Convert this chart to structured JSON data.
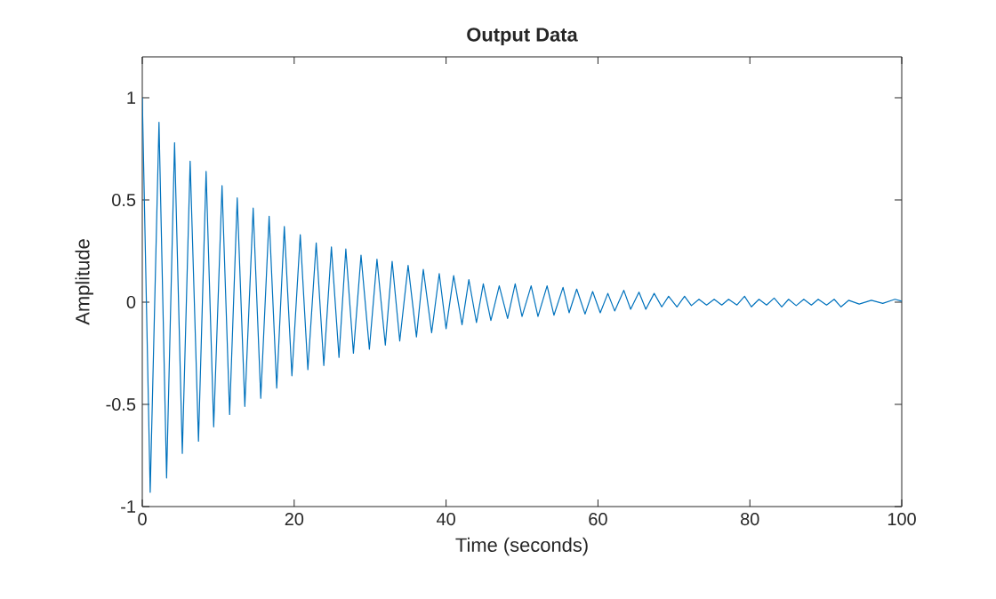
{
  "chart_data": {
    "type": "line",
    "title": "Output Data",
    "xlabel": "Time (seconds)",
    "ylabel": "Amplitude",
    "color": "#0072bd",
    "x": [
      0,
      1.04,
      2.2,
      3.2,
      4.25,
      5.27,
      6.3,
      7.4,
      8.4,
      9.4,
      10.5,
      11.5,
      12.5,
      13.5,
      14.6,
      15.6,
      16.7,
      17.7,
      18.7,
      19.7,
      20.8,
      21.8,
      22.9,
      23.9,
      24.9,
      25.9,
      26.8,
      27.8,
      28.8,
      29.9,
      30.9,
      32.0,
      32.9,
      33.9,
      35.0,
      36.1,
      37.0,
      38.1,
      39.1,
      40.0,
      41.0,
      42.1,
      43.0,
      44.0,
      44.9,
      45.9,
      47.0,
      48.1,
      49.1,
      50.0,
      51.2,
      52.1,
      53.3,
      54.2,
      55.4,
      56.2,
      57.2,
      58.3,
      59.3,
      60.3,
      61.3,
      62.2,
      63.4,
      64.3,
      65.4,
      66.3,
      67.4,
      68.4,
      69.3,
      70.4,
      71.4,
      72.3,
      73.3,
      74.3,
      75.3,
      76.3,
      77.2,
      78.3,
      79.3,
      80.2,
      81.2,
      82.2,
      83.2,
      84.2,
      85.1,
      86.1,
      87.1,
      88.1,
      89.0,
      90.1,
      91.1,
      92.0,
      93.0,
      94.4,
      96.0,
      97.5,
      99.1,
      100
    ],
    "values": [
      1,
      -0.93,
      0.88,
      -0.86,
      0.78,
      -0.74,
      0.69,
      -0.68,
      0.64,
      -0.61,
      0.57,
      -0.55,
      0.51,
      -0.51,
      0.46,
      -0.47,
      0.42,
      -0.42,
      0.37,
      -0.36,
      0.33,
      -0.33,
      0.29,
      -0.31,
      0.27,
      -0.27,
      0.26,
      -0.25,
      0.23,
      -0.23,
      0.21,
      -0.21,
      0.2,
      -0.19,
      0.18,
      -0.17,
      0.16,
      -0.15,
      0.14,
      -0.13,
      0.13,
      -0.11,
      0.11,
      -0.1,
      0.09,
      -0.09,
      0.08,
      -0.08,
      0.09,
      -0.07,
      0.08,
      -0.07,
      0.08,
      -0.064,
      0.072,
      -0.052,
      0.064,
      -0.058,
      0.052,
      -0.052,
      0.043,
      -0.043,
      0.058,
      -0.035,
      0.049,
      -0.035,
      0.043,
      -0.023,
      0.029,
      -0.023,
      0.029,
      -0.017,
      0.014,
      -0.014,
      0.014,
      -0.014,
      0.014,
      -0.014,
      0.029,
      -0.023,
      0.014,
      -0.014,
      0.02,
      -0.023,
      0.014,
      -0.017,
      0.014,
      -0.014,
      0.014,
      -0.014,
      0.014,
      -0.023,
      0.009,
      -0.009,
      0.009,
      -0.006,
      0.014,
      0.005
    ],
    "xlim": [
      0,
      100
    ],
    "ylim": [
      -1,
      1.2
    ],
    "xticks": [
      0,
      20,
      40,
      60,
      80,
      100
    ],
    "yticks": [
      -1,
      -0.5,
      0,
      0.5,
      1
    ]
  }
}
